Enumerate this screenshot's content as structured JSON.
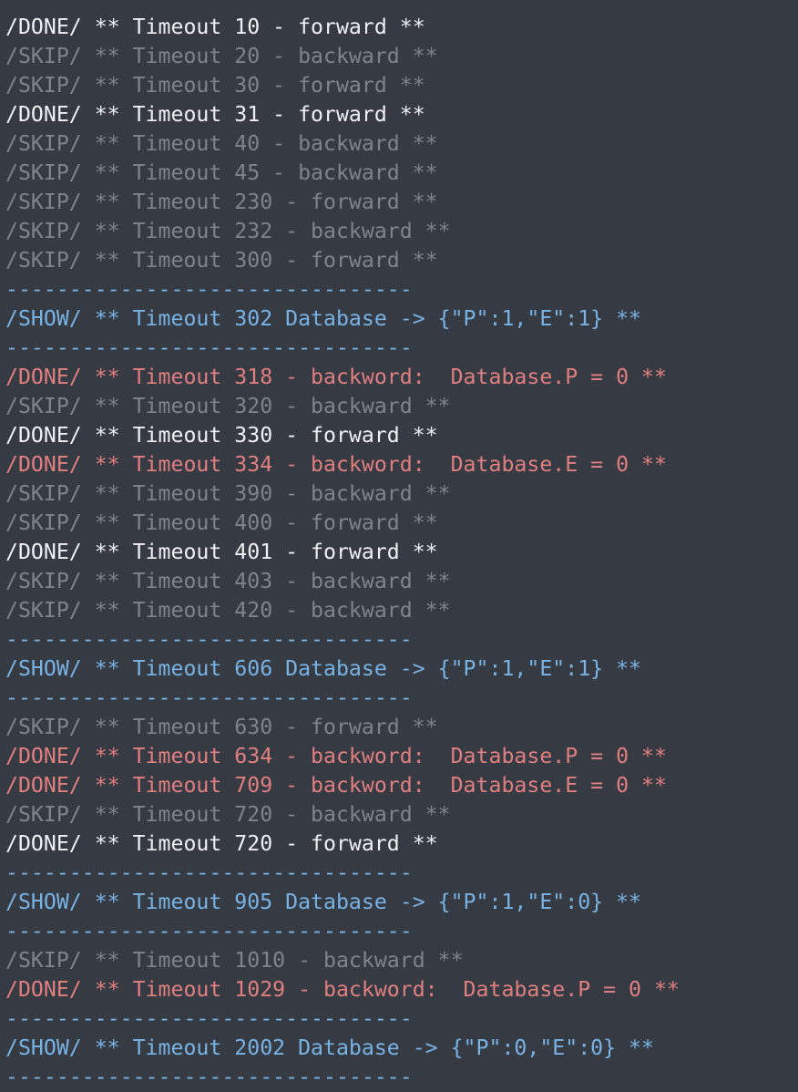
{
  "colors": {
    "background": "#363a43",
    "done": "#eef0f3",
    "skip": "#7e838c",
    "show": "#78b3e4",
    "error": "#e07f7f"
  },
  "lines": [
    {
      "kind": "done",
      "text": "/DONE/ ** Timeout 10 - forward **"
    },
    {
      "kind": "skip",
      "text": "/SKIP/ ** Timeout 20 - backward **"
    },
    {
      "kind": "skip",
      "text": "/SKIP/ ** Timeout 30 - forward **"
    },
    {
      "kind": "done",
      "text": "/DONE/ ** Timeout 31 - forward **"
    },
    {
      "kind": "skip",
      "text": "/SKIP/ ** Timeout 40 - backward **"
    },
    {
      "kind": "skip",
      "text": "/SKIP/ ** Timeout 45 - backward **"
    },
    {
      "kind": "skip",
      "text": "/SKIP/ ** Timeout 230 - forward **"
    },
    {
      "kind": "skip",
      "text": "/SKIP/ ** Timeout 232 - backward **"
    },
    {
      "kind": "skip",
      "text": "/SKIP/ ** Timeout 300 - forward **"
    },
    {
      "kind": "sep",
      "text": "--------------------------------"
    },
    {
      "kind": "show",
      "text": "/SHOW/ ** Timeout 302 Database -> {\"P\":1,\"E\":1} **"
    },
    {
      "kind": "sep",
      "text": "--------------------------------"
    },
    {
      "kind": "err",
      "text": "/DONE/ ** Timeout 318 - backword:  Database.P = 0 **"
    },
    {
      "kind": "skip",
      "text": "/SKIP/ ** Timeout 320 - backward **"
    },
    {
      "kind": "done",
      "text": "/DONE/ ** Timeout 330 - forward **"
    },
    {
      "kind": "err",
      "text": "/DONE/ ** Timeout 334 - backword:  Database.E = 0 **"
    },
    {
      "kind": "skip",
      "text": "/SKIP/ ** Timeout 390 - backward **"
    },
    {
      "kind": "skip",
      "text": "/SKIP/ ** Timeout 400 - forward **"
    },
    {
      "kind": "done",
      "text": "/DONE/ ** Timeout 401 - forward **"
    },
    {
      "kind": "skip",
      "text": "/SKIP/ ** Timeout 403 - backward **"
    },
    {
      "kind": "skip",
      "text": "/SKIP/ ** Timeout 420 - backward **"
    },
    {
      "kind": "sep",
      "text": "--------------------------------"
    },
    {
      "kind": "show",
      "text": "/SHOW/ ** Timeout 606 Database -> {\"P\":1,\"E\":1} **"
    },
    {
      "kind": "sep",
      "text": "--------------------------------"
    },
    {
      "kind": "skip",
      "text": "/SKIP/ ** Timeout 630 - forward **"
    },
    {
      "kind": "err",
      "text": "/DONE/ ** Timeout 634 - backword:  Database.P = 0 **"
    },
    {
      "kind": "err",
      "text": "/DONE/ ** Timeout 709 - backword:  Database.E = 0 **"
    },
    {
      "kind": "skip",
      "text": "/SKIP/ ** Timeout 720 - backward **"
    },
    {
      "kind": "done",
      "text": "/DONE/ ** Timeout 720 - forward **"
    },
    {
      "kind": "sep",
      "text": "--------------------------------"
    },
    {
      "kind": "show",
      "text": "/SHOW/ ** Timeout 905 Database -> {\"P\":1,\"E\":0} **"
    },
    {
      "kind": "sep",
      "text": "--------------------------------"
    },
    {
      "kind": "skip",
      "text": "/SKIP/ ** Timeout 1010 - backward **"
    },
    {
      "kind": "err",
      "text": "/DONE/ ** Timeout 1029 - backword:  Database.P = 0 **"
    },
    {
      "kind": "sep",
      "text": "--------------------------------"
    },
    {
      "kind": "show",
      "text": "/SHOW/ ** Timeout 2002 Database -> {\"P\":0,\"E\":0} **"
    },
    {
      "kind": "sep",
      "text": "--------------------------------"
    }
  ]
}
